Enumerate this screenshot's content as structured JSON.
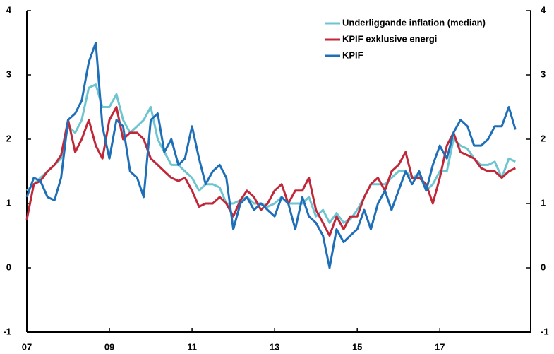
{
  "chart_data": {
    "type": "line",
    "x": [
      7,
      7.17,
      7.33,
      7.5,
      7.67,
      7.83,
      8,
      8.17,
      8.33,
      8.5,
      8.67,
      8.83,
      9,
      9.17,
      9.33,
      9.5,
      9.67,
      9.83,
      10,
      10.17,
      10.33,
      10.5,
      10.67,
      10.83,
      11,
      11.17,
      11.33,
      11.5,
      11.67,
      11.83,
      12,
      12.17,
      12.33,
      12.5,
      12.67,
      12.83,
      13,
      13.17,
      13.33,
      13.5,
      13.67,
      13.83,
      14,
      14.17,
      14.33,
      14.5,
      14.67,
      14.83,
      15,
      15.17,
      15.33,
      15.5,
      15.67,
      15.83,
      16,
      16.17,
      16.33,
      16.5,
      16.67,
      16.83,
      17,
      17.17,
      17.33,
      17.5,
      17.67,
      17.83,
      18,
      18.17,
      18.33,
      18.5,
      18.67,
      18.83
    ],
    "series": [
      {
        "name": "Underliggande inflation (median)",
        "color": "#6cc5d0",
        "values": [
          1.2,
          1.3,
          1.4,
          1.5,
          1.6,
          1.7,
          2.2,
          2.1,
          2.3,
          2.8,
          2.85,
          2.5,
          2.5,
          2.7,
          2.3,
          2.1,
          2.2,
          2.3,
          2.5,
          2.0,
          1.8,
          1.6,
          1.6,
          1.5,
          1.4,
          1.2,
          1.3,
          1.3,
          1.25,
          1.0,
          1.0,
          1.05,
          1.1,
          1.0,
          1.0,
          0.95,
          1.0,
          1.1,
          1.0,
          1.0,
          1.0,
          1.1,
          0.8,
          0.9,
          0.7,
          0.85,
          0.7,
          0.75,
          0.9,
          1.1,
          1.3,
          1.3,
          1.3,
          1.4,
          1.5,
          1.5,
          1.4,
          1.45,
          1.2,
          1.3,
          1.5,
          1.5,
          2.0,
          1.9,
          1.85,
          1.7,
          1.6,
          1.6,
          1.65,
          1.4,
          1.7,
          1.65
        ]
      },
      {
        "name": "KPIF exklusive energi",
        "color": "#c0283a",
        "values": [
          0.75,
          1.3,
          1.35,
          1.5,
          1.6,
          1.75,
          2.3,
          1.8,
          2.0,
          2.3,
          1.9,
          1.7,
          2.3,
          2.5,
          2.0,
          2.1,
          2.1,
          2.0,
          1.7,
          1.6,
          1.5,
          1.4,
          1.35,
          1.4,
          1.2,
          0.95,
          1.0,
          1.0,
          1.1,
          1.0,
          0.8,
          1.05,
          1.2,
          1.1,
          0.9,
          1.0,
          1.2,
          1.3,
          1.0,
          1.2,
          1.2,
          1.4,
          0.9,
          0.7,
          0.5,
          0.8,
          0.6,
          0.8,
          0.8,
          1.1,
          1.3,
          1.4,
          1.2,
          1.5,
          1.6,
          1.8,
          1.4,
          1.4,
          1.3,
          1.0,
          1.4,
          1.9,
          2.1,
          1.8,
          1.75,
          1.7,
          1.55,
          1.5,
          1.5,
          1.4,
          1.5,
          1.55
        ]
      },
      {
        "name": "KPIF",
        "color": "#1f6fb8",
        "values": [
          1.1,
          1.4,
          1.35,
          1.1,
          1.05,
          1.4,
          2.3,
          2.4,
          2.6,
          3.2,
          3.5,
          2.2,
          1.7,
          2.3,
          2.2,
          1.5,
          1.4,
          1.1,
          2.3,
          2.4,
          1.8,
          2.0,
          1.6,
          1.7,
          2.2,
          1.7,
          1.3,
          1.5,
          1.6,
          1.4,
          0.6,
          1.0,
          1.1,
          0.9,
          1.0,
          0.9,
          0.8,
          1.1,
          1.0,
          0.6,
          1.1,
          0.8,
          0.7,
          0.5,
          0.0,
          0.6,
          0.4,
          0.5,
          0.6,
          0.9,
          0.6,
          1.0,
          1.2,
          0.9,
          1.2,
          1.5,
          1.3,
          1.5,
          1.2,
          1.6,
          1.9,
          1.7,
          2.1,
          2.3,
          2.2,
          1.9,
          1.9,
          2.0,
          2.2,
          2.2,
          2.5,
          2.15
        ]
      }
    ],
    "xlim": [
      7,
      19.2
    ],
    "xticks": [
      {
        "value": 7,
        "label": "07"
      },
      {
        "value": 9,
        "label": "09"
      },
      11,
      13,
      15,
      17
    ],
    "ylim": [
      -1,
      4
    ],
    "yticks": [
      -1,
      0,
      1,
      2,
      3,
      4
    ],
    "y2lim": [
      -1,
      4
    ],
    "y2ticks": [
      -1,
      0,
      1,
      2,
      3,
      4
    ],
    "grid": false,
    "legend": "upper right"
  }
}
